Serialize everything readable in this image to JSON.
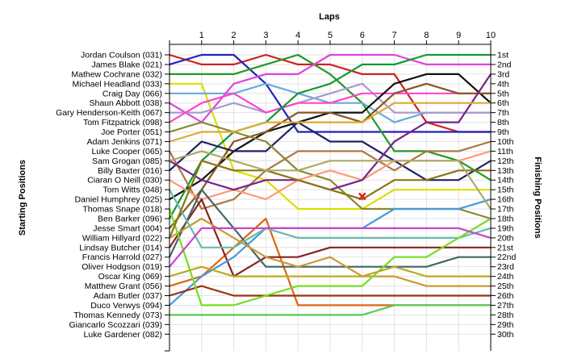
{
  "chart_data": {
    "type": "line",
    "title": "Laps",
    "ylabel_left": "Starting Positions",
    "ylabel_right": "Finishing Positions",
    "x": [
      0,
      1,
      2,
      3,
      4,
      5,
      6,
      7,
      8,
      9,
      10
    ],
    "x_tick_labels": [
      "1",
      "2",
      "3",
      "4",
      "5",
      "6",
      "7",
      "8",
      "9",
      "10"
    ],
    "y_range": [
      1,
      30
    ],
    "y_inverted": true,
    "grid": true,
    "starting_labels": [
      "Jordan Coulson (031)",
      "James Blake (021)",
      "Mathew Cochrane (032)",
      "Michael Headland (033)",
      "Craig Day (066)",
      "Shaun Abbott (038)",
      "Gary Henderson-Keith (067)",
      "Tom Fitzpatrick (098)",
      "Joe Porter (051)",
      "Adam Jenkins (071)",
      "Luke Cooper (065)",
      "Sam Grogan (085)",
      "Billy Baxter (016)",
      "Ciaran O Neill (030)",
      "Tom Witts (048)",
      "Daniel Humphrey (025)",
      "Thomas Snape (018)",
      "Ben Barker (096)",
      "Jesse Smart (004)",
      "William Hillyard (022)",
      "Lindsay Butcher (014)",
      "Francis Harrold (027)",
      "Oliver Hodgson (019)",
      "Oscar King (069)",
      "Matthew Grant (056)",
      "Adam Butler (037)",
      "Duco Verwys (094)",
      "Thomas Kennedy (073)",
      "Giancarlo Scozzari (039)",
      "Luke Gardener (082)"
    ],
    "finishing_labels": [
      "1st",
      "2nd",
      "3rd",
      "4th",
      "5th",
      "6th",
      "7th",
      "8th",
      "9th",
      "10th",
      "11th",
      "12th",
      "13th",
      "14th",
      "15th",
      "16th",
      "17th",
      "18th",
      "19th",
      "20th",
      "21st",
      "22nd",
      "23rd",
      "24th",
      "25th",
      "26th",
      "27th",
      "28th",
      "29th",
      "30th"
    ],
    "marker": {
      "lap": 6,
      "position": 15.7,
      "color": "#e02020"
    },
    "series": [
      {
        "color": "#cc2222",
        "values": [
          1,
          2,
          2,
          1,
          2,
          2,
          3,
          3,
          8,
          9,
          9
        ]
      },
      {
        "color": "#2222bb",
        "values": [
          2,
          1,
          1,
          4,
          9,
          9,
          9,
          9,
          9,
          9,
          9
        ]
      },
      {
        "color": "#229922",
        "values": [
          3,
          3,
          3,
          2,
          1,
          3,
          6,
          11,
          11,
          12,
          14
        ]
      },
      {
        "color": "#dddd00",
        "values": [
          4,
          4,
          13,
          14,
          17,
          17,
          17,
          15,
          15,
          15,
          15
        ]
      },
      {
        "color": "#66aadd",
        "values": [
          5,
          5,
          5,
          4,
          5,
          6,
          6,
          8,
          7,
          7,
          7
        ]
      },
      {
        "color": "#dd44dd",
        "values": [
          6,
          8,
          4,
          3,
          3,
          1,
          1,
          1,
          2,
          2,
          2
        ]
      },
      {
        "color": "#aa99cc",
        "values": [
          7,
          7,
          6,
          7,
          6,
          5,
          4,
          7,
          7,
          7,
          7
        ]
      },
      {
        "color": "#ff44cc",
        "values": [
          8,
          6,
          5,
          7,
          6,
          6,
          5,
          5,
          5,
          5,
          5
        ]
      },
      {
        "color": "#111111",
        "values": [
          16,
          14,
          11,
          9,
          8,
          7,
          7,
          4,
          3,
          3,
          6
        ]
      },
      {
        "color": "#119933",
        "values": [
          18,
          12,
          9,
          8,
          5,
          4,
          2,
          2,
          1,
          1,
          1
        ]
      },
      {
        "color": "#885522",
        "values": [
          19,
          15,
          10,
          9,
          7,
          7,
          8,
          5,
          4,
          5,
          5
        ]
      },
      {
        "color": "#222266",
        "values": [
          13,
          10,
          11,
          11,
          8,
          10,
          10,
          12,
          14,
          14,
          12
        ]
      },
      {
        "color": "#aa7744",
        "values": [
          11,
          17,
          16,
          13,
          11,
          11,
          11,
          13,
          11,
          11,
          10
        ]
      },
      {
        "color": "#888833",
        "values": [
          9,
          8,
          9,
          10,
          13,
          14,
          17,
          17,
          17,
          17,
          18
        ]
      },
      {
        "color": "#ff9977",
        "values": [
          14,
          16,
          15,
          16,
          14,
          13,
          14,
          12,
          12,
          12,
          11
        ]
      },
      {
        "color": "#772288",
        "values": [
          12,
          14,
          15,
          14,
          14,
          15,
          14,
          10,
          8,
          8,
          3
        ]
      },
      {
        "color": "#ddaa33",
        "values": [
          10,
          9,
          9,
          8,
          8,
          8,
          8,
          6,
          6,
          6,
          6
        ]
      },
      {
        "color": "#dd6611",
        "values": [
          25,
          24,
          21,
          18,
          27,
          27,
          27,
          27,
          27,
          27,
          27
        ]
      },
      {
        "color": "#882222",
        "values": [
          21,
          16,
          24,
          22,
          22,
          21,
          21,
          21,
          21,
          21,
          21
        ]
      },
      {
        "color": "#446666",
        "values": [
          22,
          15,
          19,
          23,
          23,
          23,
          23,
          23,
          23,
          22,
          22
        ]
      },
      {
        "color": "#4499dd",
        "values": [
          27,
          24,
          22,
          19,
          19,
          19,
          19,
          17,
          17,
          17,
          16
        ]
      },
      {
        "color": "#cc9933",
        "values": [
          20,
          18,
          20,
          22,
          23,
          22,
          24,
          24,
          25,
          25,
          25
        ]
      },
      {
        "color": "#66bbaa",
        "values": [
          15,
          21,
          21,
          19,
          20,
          20,
          20,
          20,
          20,
          20,
          19
        ]
      },
      {
        "color": "#993311",
        "values": [
          26,
          25,
          26,
          26,
          26,
          26,
          26,
          26,
          26,
          26,
          26
        ]
      },
      {
        "color": "#77dd22",
        "values": [
          17,
          27,
          27,
          26,
          25,
          25,
          25,
          22,
          22,
          20,
          18
        ]
      },
      {
        "color": "#55cc55",
        "values": [
          28,
          28,
          28,
          28,
          28,
          28,
          28,
          27,
          27,
          27,
          27
        ]
      },
      {
        "color": "#bbaa22",
        "values": [
          24,
          23,
          24,
          24,
          24,
          24,
          24,
          23,
          24,
          24,
          24
        ]
      },
      {
        "color": "#cc44cc",
        "values": [
          23,
          19,
          19,
          19,
          19,
          19,
          19,
          19,
          19,
          19,
          20
        ]
      },
      {
        "color": "#887711",
        "values": [
          20,
          12,
          13,
          13,
          14,
          15,
          16,
          14,
          14,
          13,
          13
        ]
      },
      {
        "color": "#aaaa66",
        "values": [
          12,
          11,
          12,
          13,
          13,
          12,
          12,
          12,
          12,
          12,
          17
        ]
      }
    ]
  }
}
